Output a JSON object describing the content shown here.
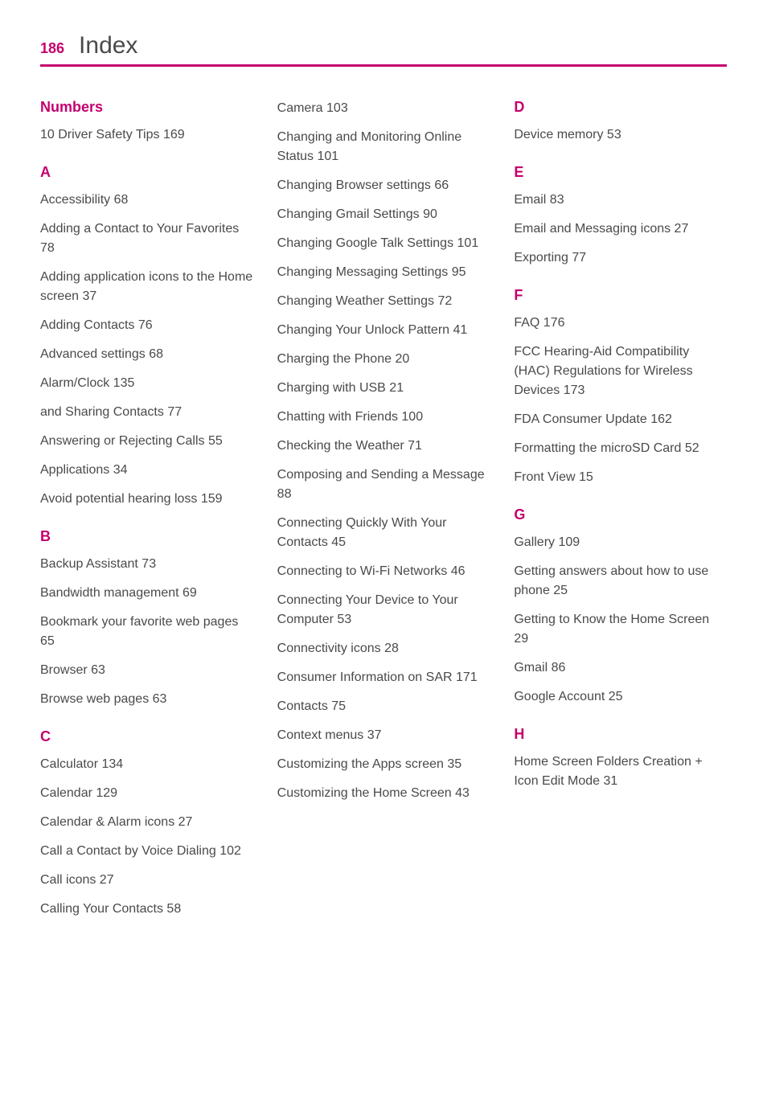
{
  "header": {
    "page_number": "186",
    "title": "Index"
  },
  "columns": [
    {
      "sections": [
        {
          "heading": "Numbers",
          "first": true,
          "entries": [
            "10 Driver Safety Tips  169"
          ]
        },
        {
          "heading": "A",
          "entries": [
            "Accessibility  68",
            "Adding a Contact to Your Favorites  78",
            "Adding application icons to the Home screen  37",
            "Adding Contacts  76",
            "Advanced settings  68",
            "Alarm/Clock  135",
            "and Sharing Contacts  77",
            "Answering or Rejecting Calls  55",
            "Applications  34",
            "Avoid potential hearing loss  159"
          ]
        },
        {
          "heading": "B",
          "entries": [
            "Backup Assistant  73",
            "Bandwidth management  69",
            "Bookmark your favorite web pages  65",
            "Browser  63",
            "Browse web pages  63"
          ]
        },
        {
          "heading": "C",
          "entries": [
            "Calculator  134",
            "Calendar  129",
            "Calendar & Alarm icons  27",
            "Call a Contact by Voice Dialing  102",
            "Call icons  27",
            "Calling Your Contacts  58"
          ]
        }
      ]
    },
    {
      "sections": [
        {
          "heading": "",
          "first": true,
          "entries": [
            "Camera  103",
            "Changing and Monitoring Online Status  101",
            "Changing Browser settings  66",
            "Changing Gmail Settings  90",
            "Changing Google Talk Settings  101",
            "Changing Messaging Settings  95",
            "Changing Weather Settings  72",
            "Changing Your Unlock Pattern  41",
            "Charging the Phone  20",
            "Charging with USB  21",
            "Chatting with Friends  100",
            "Checking the Weather  71",
            "Composing and Sending a Message  88",
            "Connecting Quickly With Your Contacts  45",
            "Connecting to Wi-Fi Networks  46",
            "Connecting Your Device to Your Computer  53",
            "Connectivity icons  28",
            "Consumer Information on SAR  171",
            "Contacts  75",
            "Context menus  37",
            "Customizing the Apps screen  35",
            "Customizing the Home Screen  43"
          ]
        }
      ]
    },
    {
      "sections": [
        {
          "heading": "D",
          "first": true,
          "entries": [
            "Device memory  53"
          ]
        },
        {
          "heading": "E",
          "entries": [
            "Email  83",
            "Email and Messaging icons  27",
            "Exporting  77"
          ]
        },
        {
          "heading": "F",
          "entries": [
            "FAQ  176",
            "FCC Hearing-Aid Compatibility (HAC) Regulations for Wireless Devices  173",
            "FDA Consumer Update  162",
            "Formatting the microSD Card  52",
            "Front View  15"
          ]
        },
        {
          "heading": "G",
          "entries": [
            "Gallery  109",
            "Getting answers about how to use phone  25",
            "Getting to Know the Home Screen  29",
            "Gmail  86",
            "Google Account  25"
          ]
        },
        {
          "heading": "H",
          "entries": [
            "Home Screen Folders Creation + Icon Edit Mode  31"
          ]
        }
      ]
    }
  ]
}
